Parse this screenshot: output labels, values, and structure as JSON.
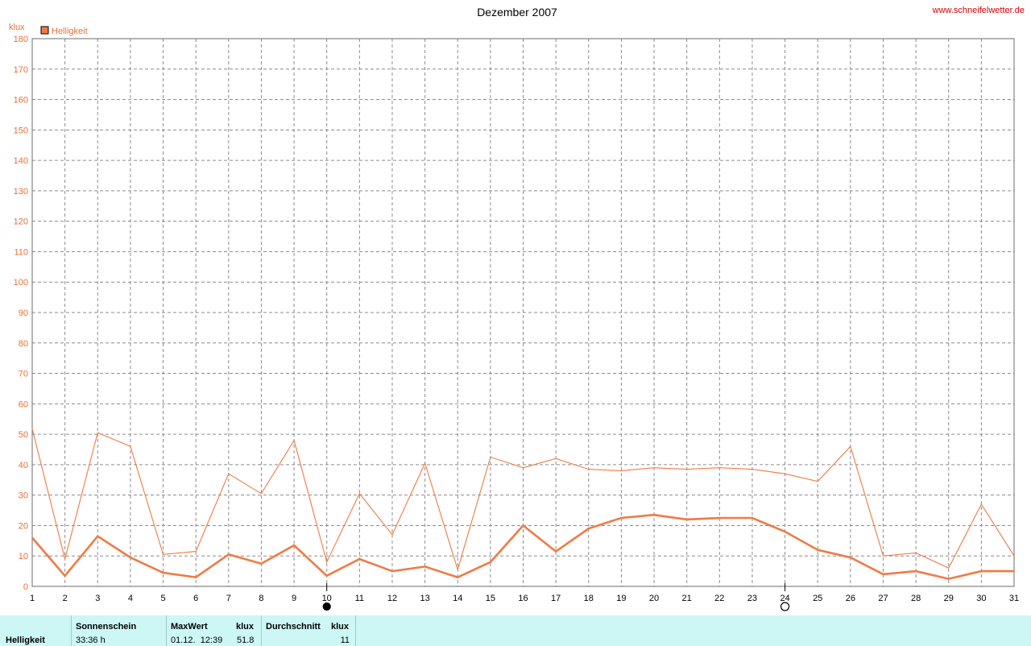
{
  "header": {
    "title": "Dezember 2007",
    "site": "www.schneifelwetter.de"
  },
  "chart_data": {
    "type": "line",
    "title": "Dezember 2007",
    "ylabel": "klux",
    "ylim": [
      0,
      180
    ],
    "yticks": [
      0,
      10,
      20,
      30,
      40,
      50,
      60,
      70,
      80,
      90,
      100,
      110,
      120,
      130,
      140,
      150,
      160,
      170,
      180
    ],
    "x": [
      1,
      2,
      3,
      4,
      5,
      6,
      7,
      8,
      9,
      10,
      11,
      12,
      13,
      14,
      15,
      16,
      17,
      18,
      19,
      20,
      21,
      22,
      23,
      24,
      25,
      26,
      27,
      28,
      29,
      30,
      31
    ],
    "grid": true,
    "legend": {
      "label": "Helligkeit",
      "position": "top-left",
      "color": "#f07a45"
    },
    "series": [
      {
        "name": "Helligkeit",
        "style": "thin",
        "color": "#f07a45",
        "values": [
          51.8,
          9,
          50.5,
          46,
          10.5,
          11.5,
          37,
          30.5,
          48,
          8,
          30.5,
          17,
          40.5,
          5.5,
          42.5,
          39,
          42,
          38.5,
          38,
          39,
          38.5,
          39,
          38.5,
          37,
          34.5,
          46,
          10,
          11,
          6,
          27,
          10
        ]
      },
      {
        "style": "thick",
        "color": "#f07a45",
        "values": [
          16,
          3.5,
          16.5,
          9.5,
          4.5,
          3,
          10.5,
          7.5,
          13.5,
          3.5,
          9,
          5,
          6.5,
          3,
          8,
          20,
          11.5,
          19,
          22.5,
          23.5,
          22,
          22.5,
          22.5,
          18,
          12,
          9.5,
          4,
          5,
          2.5,
          5,
          5
        ]
      }
    ],
    "moon_phases": [
      {
        "day": 10,
        "phase": "new-moon"
      },
      {
        "day": 24,
        "phase": "full-moon"
      }
    ]
  },
  "stats": {
    "row_label": "Helligkeit",
    "sonnenschein_header": "Sonnenschein",
    "sonnenschein_value": "33:36 h",
    "maxwert_header": "MaxWert",
    "maxwert_unit": "klux",
    "maxwert_time": "01.12.  12:39",
    "maxwert_value": "51.8",
    "durchschnitt_header": "Durchschnitt",
    "durchschnitt_unit": "klux",
    "durchschnitt_value": "11"
  }
}
